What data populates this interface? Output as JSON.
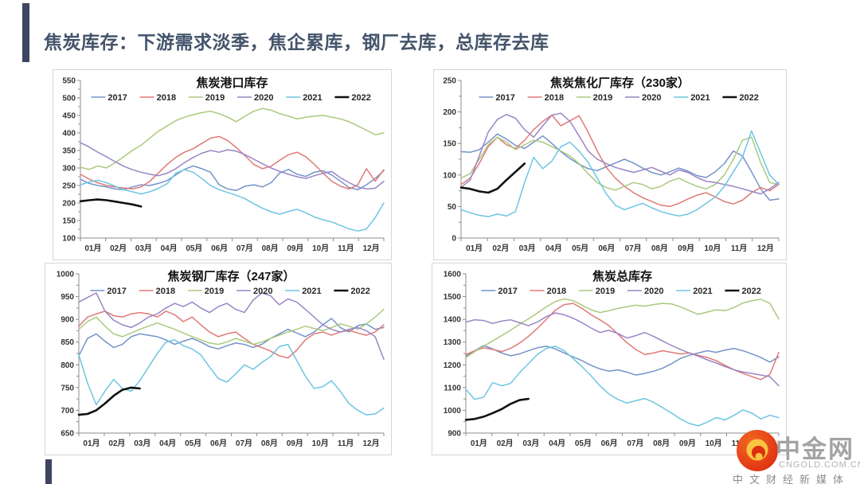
{
  "page": {
    "title": "焦炭库存：下游需求淡季，焦企累库，钢厂去库，总库存去库",
    "accent_color": "#3E4560",
    "title_color": "#44546A"
  },
  "watermark": {
    "brand": "中金网",
    "domain": "CNGOLD.COM.CN",
    "tagline": "中文财经新媒体",
    "logo_icon": "gold-swirl-icon",
    "logo_red": "#DD2E12",
    "logo_orange": "#F26822",
    "logo_gold": "#F9C440"
  },
  "months": [
    "01月",
    "02月",
    "03月",
    "04月",
    "05月",
    "06月",
    "07月",
    "08月",
    "09月",
    "10月",
    "11月",
    "12月"
  ],
  "legend_years": [
    "2017",
    "2018",
    "2019",
    "2020",
    "2021",
    "2022"
  ],
  "series_colors": {
    "2017": "#7593C9",
    "2018": "#DF7A76",
    "2019": "#ABC97E",
    "2020": "#9A85C6",
    "2021": "#6EC5E2",
    "2022": "#111111"
  },
  "chart_data": [
    {
      "type": "line",
      "name": "port-inventory",
      "title": "焦炭港口库存",
      "ylim": [
        100,
        550
      ],
      "ystep": 50,
      "legend_position": "top",
      "grid": false,
      "series": [
        {
          "name": "2017",
          "values": [
            268,
            256,
            250,
            246,
            240,
            238,
            246,
            252,
            250,
            256,
            264,
            280,
            296,
            306,
            298,
            288,
            252,
            240,
            236,
            248,
            252,
            246,
            258,
            286,
            296,
            282,
            276,
            288,
            292,
            280,
            262,
            244,
            238,
            252,
            270,
            292
          ]
        },
        {
          "name": "2018",
          "values": [
            282,
            268,
            258,
            250,
            246,
            243,
            240,
            246,
            262,
            286,
            310,
            330,
            345,
            355,
            370,
            385,
            390,
            378,
            358,
            335,
            310,
            298,
            305,
            322,
            338,
            345,
            332,
            310,
            285,
            262,
            248,
            240,
            252,
            298,
            262,
            295
          ]
        },
        {
          "name": "2019",
          "values": [
            302,
            296,
            306,
            300,
            315,
            332,
            350,
            365,
            385,
            405,
            420,
            435,
            445,
            452,
            458,
            462,
            455,
            445,
            432,
            448,
            462,
            470,
            465,
            455,
            448,
            440,
            445,
            448,
            450,
            445,
            440,
            432,
            420,
            408,
            395,
            400
          ]
        },
        {
          "name": "2020",
          "values": [
            372,
            360,
            345,
            332,
            318,
            305,
            295,
            288,
            282,
            278,
            285,
            298,
            315,
            330,
            342,
            350,
            345,
            352,
            348,
            338,
            325,
            312,
            300,
            290,
            282,
            275,
            270,
            278,
            285,
            290,
            272,
            258,
            246,
            240,
            242,
            262
          ]
        },
        {
          "name": "2021",
          "values": [
            252,
            260,
            265,
            258,
            248,
            238,
            232,
            226,
            232,
            242,
            255,
            285,
            295,
            288,
            270,
            250,
            238,
            230,
            222,
            212,
            198,
            185,
            175,
            168,
            176,
            182,
            172,
            160,
            152,
            146,
            136,
            126,
            120,
            126,
            158,
            200
          ]
        },
        {
          "name": "2022",
          "values": [
            205,
            208,
            210,
            208,
            204,
            200,
            196,
            190
          ]
        }
      ]
    },
    {
      "type": "line",
      "name": "coking-plant-inventory",
      "title": "焦炭焦化厂库存（230家）",
      "ylim": [
        0,
        250
      ],
      "ystep": 50,
      "legend_position": "top",
      "grid": false,
      "series": [
        {
          "name": "2017",
          "values": [
            137,
            136,
            140,
            152,
            165,
            157,
            147,
            142,
            152,
            162,
            150,
            137,
            126,
            117,
            110,
            107,
            113,
            119,
            125,
            119,
            111,
            104,
            100,
            105,
            111,
            106,
            99,
            96,
            105,
            118,
            138,
            130,
            105,
            78,
            60,
            62
          ]
        },
        {
          "name": "2018",
          "values": [
            85,
            95,
            118,
            145,
            160,
            148,
            142,
            155,
            172,
            185,
            195,
            178,
            186,
            194,
            168,
            138,
            112,
            95,
            82,
            72,
            64,
            58,
            52,
            50,
            55,
            62,
            68,
            72,
            65,
            58,
            54,
            60,
            72,
            80,
            75,
            85
          ]
        },
        {
          "name": "2019",
          "values": [
            95,
            102,
            125,
            148,
            160,
            152,
            140,
            148,
            155,
            152,
            145,
            138,
            130,
            118,
            102,
            88,
            80,
            76,
            82,
            88,
            85,
            78,
            82,
            90,
            95,
            88,
            82,
            78,
            85,
            100,
            125,
            155,
            160,
            120,
            88,
            85
          ]
        },
        {
          "name": "2020",
          "values": [
            80,
            92,
            130,
            168,
            188,
            196,
            190,
            172,
            160,
            178,
            195,
            198,
            185,
            162,
            138,
            125,
            118,
            112,
            108,
            104,
            108,
            112,
            106,
            100,
            108,
            104,
            96,
            90,
            88,
            85,
            82,
            78,
            74,
            70,
            78,
            88
          ]
        },
        {
          "name": "2021",
          "values": [
            45,
            40,
            36,
            34,
            38,
            35,
            42,
            88,
            128,
            110,
            122,
            145,
            152,
            138,
            120,
            95,
            70,
            52,
            45,
            50,
            55,
            48,
            42,
            38,
            35,
            38,
            45,
            55,
            65,
            82,
            105,
            128,
            170,
            135,
            100,
            85
          ]
        },
        {
          "name": "2022",
          "values": [
            80,
            78,
            74,
            72,
            78,
            92,
            105,
            118
          ]
        }
      ]
    },
    {
      "type": "line",
      "name": "steel-mill-inventory",
      "title": "焦炭钢厂库存（247家）",
      "ylim": [
        650,
        1000
      ],
      "ystep": 50,
      "legend_position": "top",
      "grid": false,
      "series": [
        {
          "name": "2017",
          "values": [
            820,
            858,
            868,
            852,
            838,
            845,
            862,
            868,
            865,
            862,
            855,
            845,
            852,
            858,
            850,
            840,
            835,
            842,
            848,
            845,
            838,
            845,
            858,
            868,
            878,
            870,
            862,
            872,
            888,
            902,
            882,
            872,
            886,
            890,
            878,
            882
          ]
        },
        {
          "name": "2018",
          "values": [
            885,
            905,
            912,
            918,
            908,
            905,
            912,
            915,
            912,
            905,
            918,
            910,
            895,
            905,
            888,
            872,
            862,
            868,
            872,
            858,
            845,
            838,
            830,
            820,
            815,
            832,
            855,
            868,
            872,
            865,
            872,
            876,
            870,
            865,
            872,
            888
          ]
        },
        {
          "name": "2019",
          "values": [
            878,
            895,
            905,
            885,
            868,
            862,
            870,
            878,
            885,
            892,
            885,
            878,
            870,
            862,
            855,
            848,
            845,
            850,
            858,
            852,
            845,
            850,
            858,
            865,
            872,
            878,
            885,
            880,
            875,
            882,
            890,
            885,
            878,
            890,
            905,
            922
          ]
        },
        {
          "name": "2020",
          "values": [
            938,
            948,
            958,
            918,
            898,
            888,
            882,
            892,
            905,
            912,
            925,
            935,
            928,
            938,
            925,
            915,
            928,
            935,
            922,
            915,
            942,
            958,
            952,
            932,
            945,
            938,
            922,
            905,
            888,
            878,
            872,
            878,
            882,
            875,
            862,
            812
          ]
        },
        {
          "name": "2021",
          "values": [
            822,
            760,
            712,
            742,
            768,
            748,
            742,
            765,
            795,
            825,
            850,
            855,
            842,
            835,
            822,
            795,
            770,
            762,
            780,
            800,
            790,
            805,
            818,
            840,
            845,
            810,
            775,
            748,
            752,
            765,
            742,
            715,
            700,
            690,
            692,
            705
          ]
        },
        {
          "name": "2022",
          "values": [
            690,
            692,
            700,
            715,
            732,
            745,
            750,
            748
          ]
        }
      ]
    },
    {
      "type": "line",
      "name": "total-inventory",
      "title": "焦炭总库存",
      "ylim": [
        900,
        1600
      ],
      "ystep": 100,
      "legend_position": "top",
      "grid": false,
      "series": [
        {
          "name": "2017",
          "values": [
            1238,
            1262,
            1285,
            1270,
            1252,
            1240,
            1248,
            1262,
            1275,
            1282,
            1270,
            1252,
            1235,
            1218,
            1198,
            1182,
            1172,
            1178,
            1168,
            1155,
            1162,
            1172,
            1185,
            1205,
            1228,
            1242,
            1252,
            1262,
            1255,
            1265,
            1272,
            1262,
            1248,
            1232,
            1212,
            1235
          ]
        },
        {
          "name": "2018",
          "values": [
            1245,
            1262,
            1275,
            1268,
            1258,
            1272,
            1295,
            1325,
            1360,
            1400,
            1440,
            1465,
            1470,
            1448,
            1420,
            1398,
            1372,
            1335,
            1298,
            1268,
            1245,
            1252,
            1262,
            1255,
            1248,
            1252,
            1242,
            1232,
            1218,
            1198,
            1178,
            1162,
            1148,
            1135,
            1158,
            1255
          ]
        },
        {
          "name": "2019",
          "values": [
            1232,
            1258,
            1282,
            1305,
            1328,
            1352,
            1378,
            1402,
            1428,
            1455,
            1478,
            1490,
            1482,
            1462,
            1442,
            1430,
            1438,
            1448,
            1455,
            1462,
            1458,
            1465,
            1470,
            1468,
            1455,
            1438,
            1422,
            1432,
            1442,
            1438,
            1452,
            1472,
            1482,
            1488,
            1470,
            1402
          ]
        },
        {
          "name": "2020",
          "values": [
            1388,
            1398,
            1395,
            1382,
            1392,
            1398,
            1385,
            1372,
            1388,
            1412,
            1428,
            1420,
            1405,
            1385,
            1362,
            1342,
            1352,
            1338,
            1318,
            1328,
            1342,
            1325,
            1305,
            1285,
            1268,
            1252,
            1238,
            1222,
            1208,
            1192,
            1178,
            1168,
            1162,
            1155,
            1148,
            1108
          ]
        },
        {
          "name": "2021",
          "values": [
            1092,
            1048,
            1058,
            1122,
            1108,
            1118,
            1165,
            1205,
            1245,
            1272,
            1282,
            1262,
            1228,
            1192,
            1152,
            1108,
            1072,
            1048,
            1032,
            1042,
            1052,
            1035,
            1012,
            988,
            962,
            942,
            932,
            948,
            968,
            958,
            978,
            1002,
            988,
            962,
            978,
            968
          ]
        },
        {
          "name": "2022",
          "values": [
            958,
            962,
            972,
            988,
            1005,
            1028,
            1045,
            1050
          ]
        }
      ]
    }
  ]
}
